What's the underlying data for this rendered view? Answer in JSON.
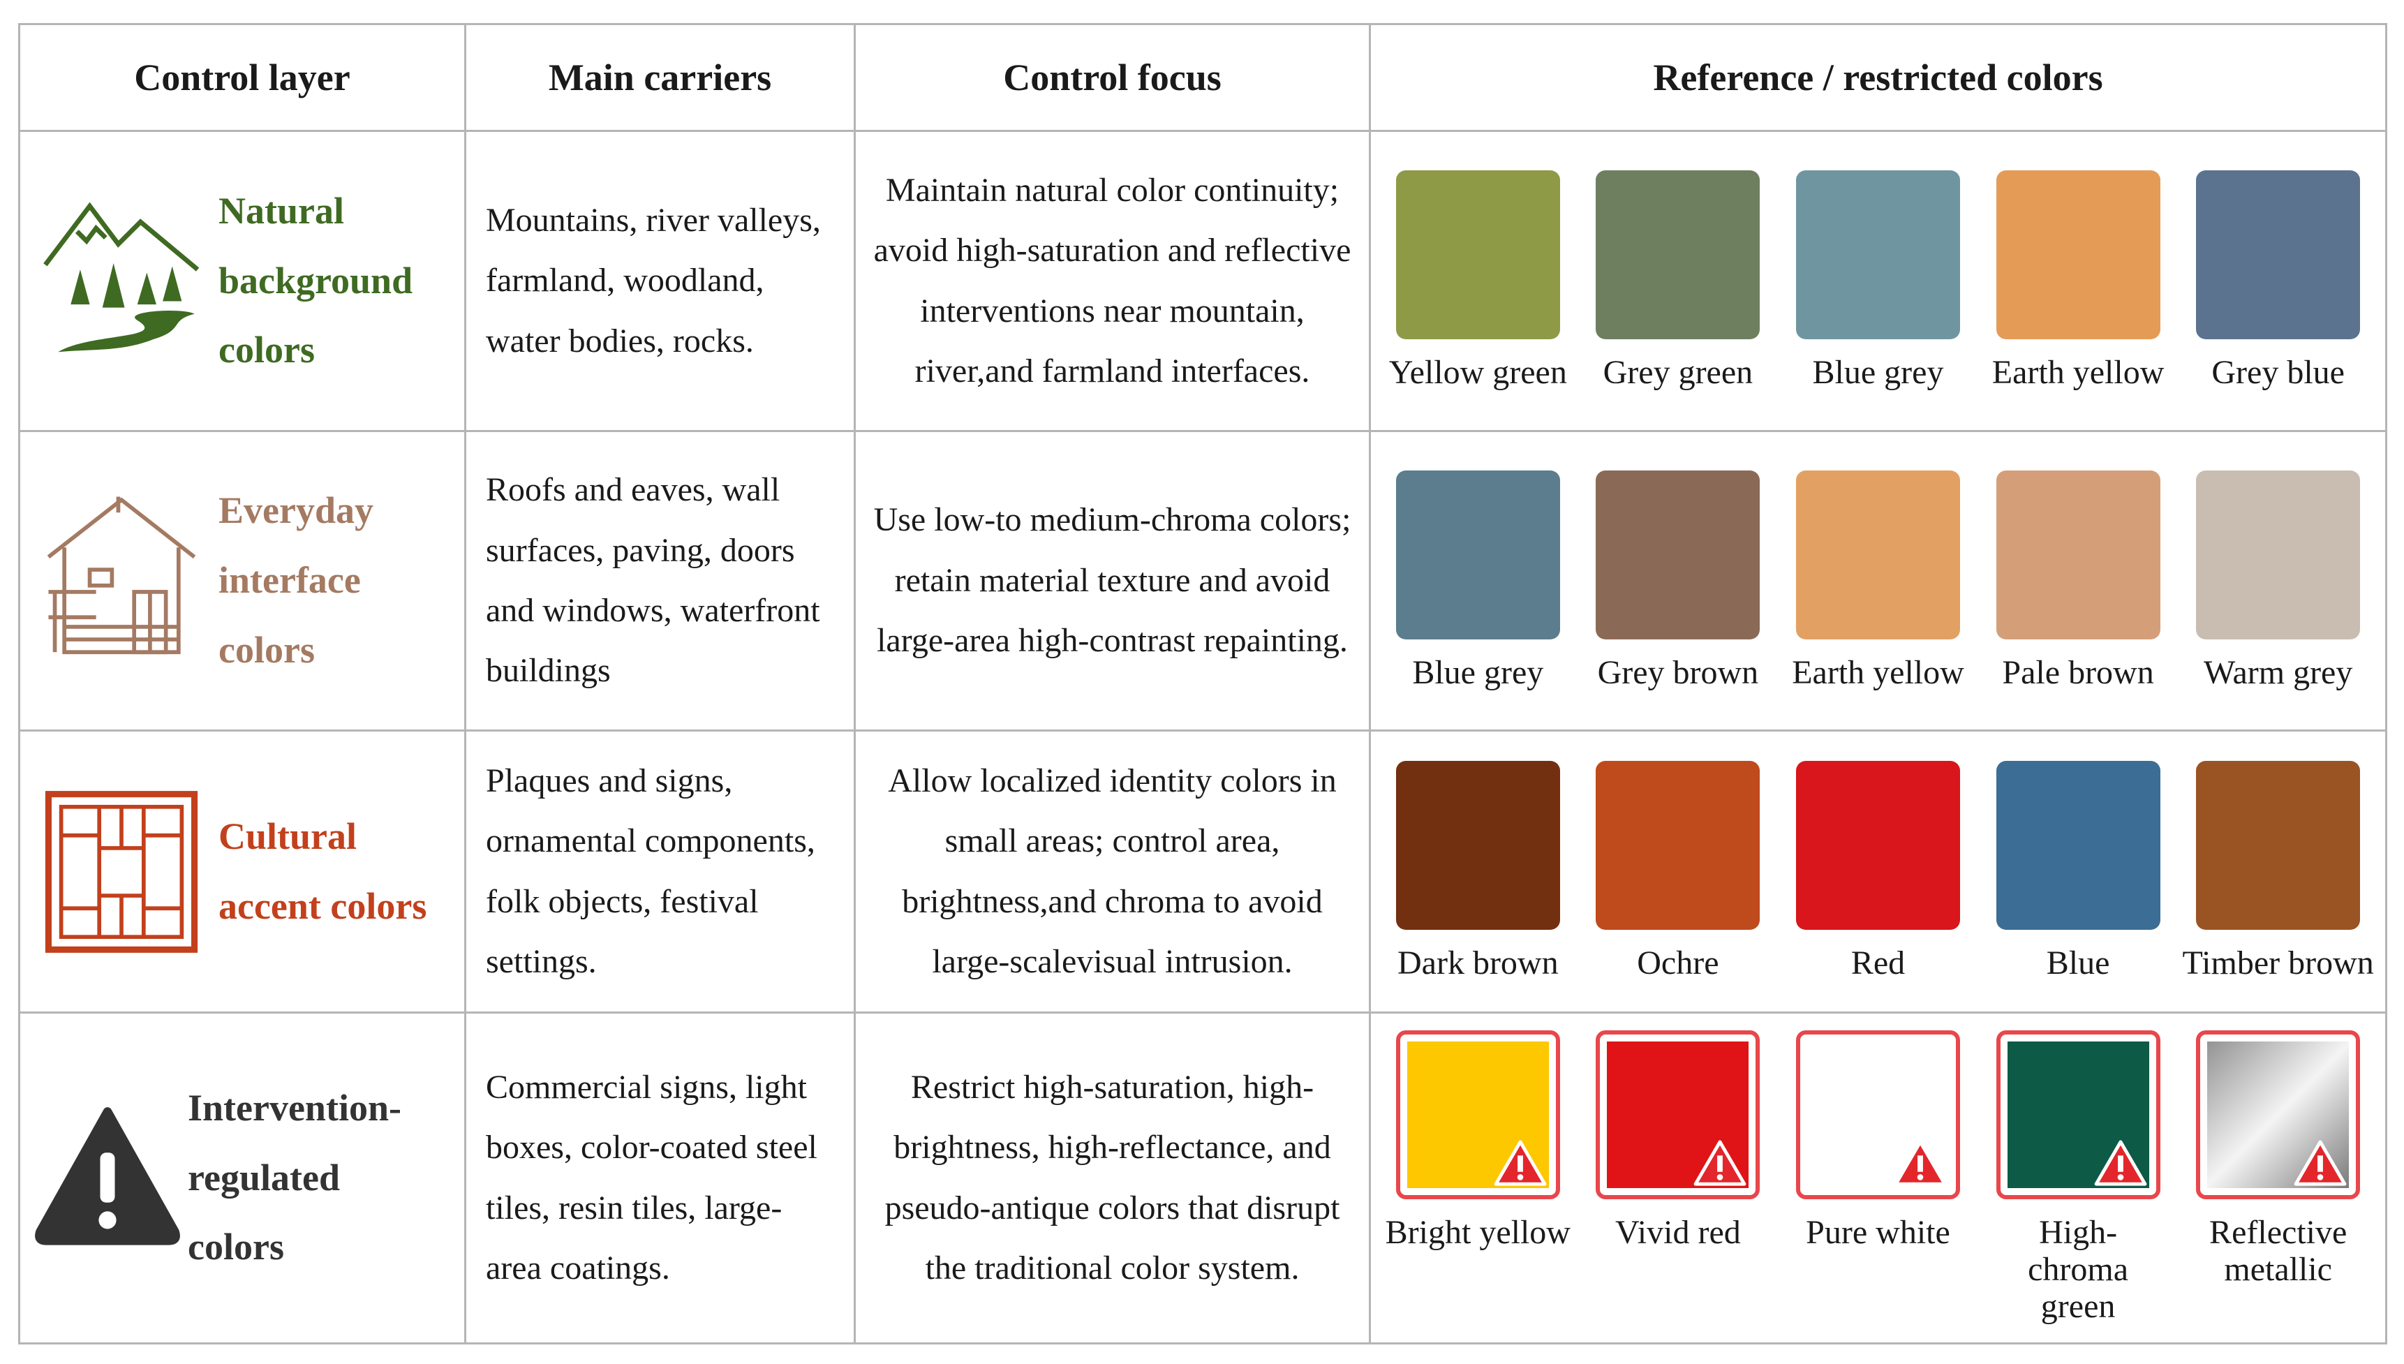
{
  "header": [
    "Control layer",
    "Main carriers",
    "Control focus",
    "Reference / restricted colors"
  ],
  "rows": [
    {
      "layer": "Natural background colors",
      "layer_color": "#3f6a22",
      "carriers": "Mountains, river valleys, farmland, woodland, water bodies, rocks.",
      "focus": "Maintain natural color continuity; avoid high-saturation and reflective interventions near mountain, river,and farmland interfaces.",
      "colors": [
        {
          "name": "Yellow green",
          "color": "#8f9a46"
        },
        {
          "name": "Grey green",
          "color": "#6e7f5f"
        },
        {
          "name": "Blue grey",
          "color": "#6f96a0"
        },
        {
          "name": "Earth yellow",
          "color": "#e49b56"
        },
        {
          "name": "Grey blue",
          "color": "#5c7390"
        }
      ]
    },
    {
      "layer": "Everyday interface colors",
      "layer_color": "#a47a62",
      "carriers": "Roofs and eaves, wall surfaces, paving, doors and windows, waterfront buildings",
      "focus": "Use low-to medium-chroma colors; retain material texture and avoid large-area high-contrast repainting.",
      "colors": [
        {
          "name": "Blue grey",
          "color": "#5b7d8d"
        },
        {
          "name": "Grey brown",
          "color": "#8a6a56"
        },
        {
          "name": "Earth yellow",
          "color": "#e2a163"
        },
        {
          "name": "Pale brown",
          "color": "#d49f78"
        },
        {
          "name": "Warm grey",
          "color": "#c8bdb0"
        }
      ]
    },
    {
      "layer": "Cultural accent colors",
      "layer_color": "#c2401c",
      "carriers": "Plaques and signs, ornamental components, folk objects, festival settings.",
      "focus": "Allow localized identity colors in small areas; control area, brightness,and chroma to avoid large-scalevisual intrusion.",
      "colors": [
        {
          "name": "Dark brown",
          "color": "#733010"
        },
        {
          "name": "Ochre",
          "color": "#bf4a1c"
        },
        {
          "name": "Red",
          "color": "#d8161c"
        },
        {
          "name": "Blue",
          "color": "#3c6d94"
        },
        {
          "name": "Timber brown",
          "color": "#9a5424"
        }
      ]
    },
    {
      "layer": "Intervention-regulated colors",
      "layer_color": "#333333",
      "restricted": true,
      "carriers": "Commercial signs, light boxes, color-coated steel tiles, resin tiles, large-area coatings.",
      "focus": "Restrict high-saturation, high-brightness, high-reflectance, and pseudo-antique colors that disrupt the traditional color system.",
      "colors": [
        {
          "name": "Bright yellow",
          "color": "#fdc800"
        },
        {
          "name": "Vivid red",
          "color": "#e01416"
        },
        {
          "name": "Pure white",
          "color": "#ffffff"
        },
        {
          "name": "High-chroma green",
          "color": "#0d5a46"
        },
        {
          "name": "Reflective metallic",
          "color": "linear-gradient(135deg,#8a8a8a,#f4f4f4 50%,#6e6e6e)"
        }
      ]
    }
  ]
}
